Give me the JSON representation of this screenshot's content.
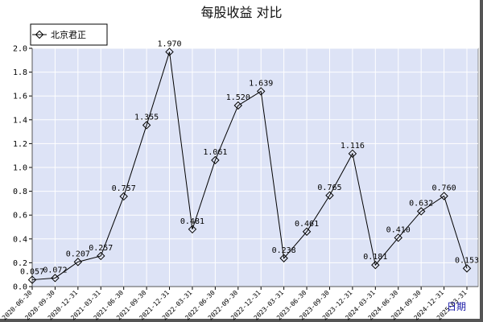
{
  "chart_data": {
    "type": "line",
    "title": "每股收益  对比",
    "xlabel": "日期",
    "ylabel": "",
    "ylim": [
      0,
      2.0
    ],
    "yticks": [
      "0.0",
      "0.2",
      "0.4",
      "0.6",
      "0.8",
      "1.0",
      "1.2",
      "1.4",
      "1.6",
      "1.8",
      "2.0"
    ],
    "grid": true,
    "legend": "top-left",
    "categories": [
      "2020-06-30",
      "2020-09-30",
      "2020-12-31",
      "2021-03-31",
      "2021-06-30",
      "2021-09-30",
      "2021-12-31",
      "2022-03-31",
      "2022-06-30",
      "2022-09-30",
      "2022-12-31",
      "2023-03-31",
      "2023-06-30",
      "2023-09-30",
      "2023-12-31",
      "2024-03-31",
      "2024-06-30",
      "2024-09-30",
      "2024-12-31",
      "2025-03-31"
    ],
    "series": [
      {
        "name": "北京君正",
        "color": "#000000",
        "values": [
          0.057,
          0.072,
          0.207,
          0.257,
          0.757,
          1.355,
          1.97,
          0.481,
          1.061,
          1.52,
          1.639,
          0.238,
          0.461,
          0.765,
          1.116,
          0.181,
          0.41,
          0.632,
          0.76,
          0.153
        ],
        "labels": [
          "0.057",
          "0.072",
          "0.207",
          "0.257",
          "0.757",
          "1.355",
          "1.970",
          "0.481",
          "1.061",
          "1.520",
          "1.639",
          "0.238",
          "0.461",
          "0.765",
          "1.116",
          "0.181",
          "0.410",
          "0.632",
          "0.760",
          "0.153"
        ]
      }
    ],
    "colors": {
      "plot_bg": "#dde3f6",
      "grid": "#ffffff",
      "line": "#000000",
      "axis_label": "#1a1aa6"
    }
  }
}
